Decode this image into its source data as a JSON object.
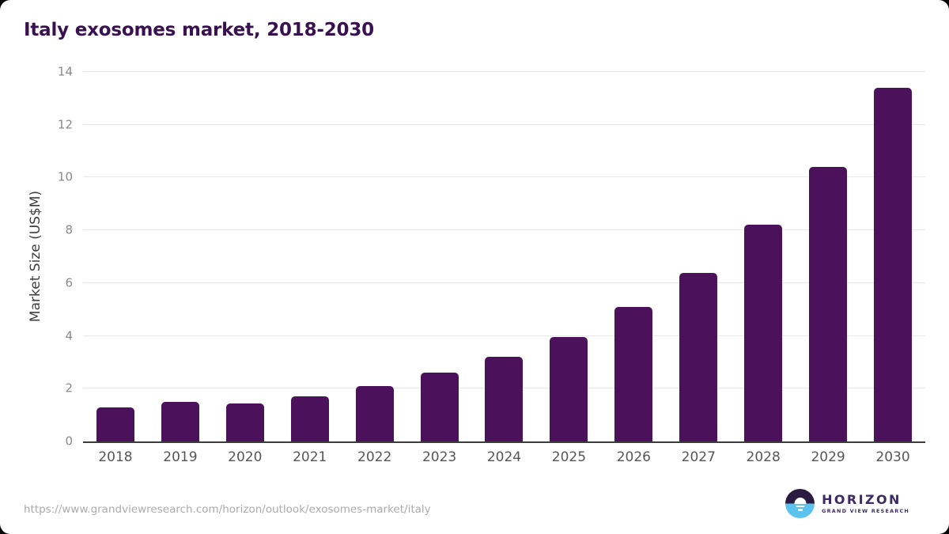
{
  "chart_data": {
    "type": "bar",
    "title": "Italy exosomes market, 2018-2030",
    "categories": [
      "2018",
      "2019",
      "2020",
      "2021",
      "2022",
      "2023",
      "2024",
      "2025",
      "2026",
      "2027",
      "2028",
      "2029",
      "2030"
    ],
    "values": [
      1.28,
      1.49,
      1.43,
      1.72,
      2.09,
      2.6,
      3.2,
      3.95,
      5.1,
      6.4,
      8.2,
      10.4,
      13.4
    ],
    "xlabel": "",
    "ylabel": "Market Size (US$M)",
    "ylim": [
      0,
      14
    ],
    "ytick_step": 2,
    "grid": true,
    "legend": false,
    "bar_color": "#4B115A"
  },
  "footer": {
    "source_url": "https://www.grandviewresearch.com/horizon/outlook/exosomes-market/italy",
    "logo": {
      "brand": "HORIZON",
      "sub_brand": "GRAND VIEW RESEARCH"
    }
  },
  "colors": {
    "bar": "#4B115A",
    "title": "#3A1150",
    "grid_line": "#E8E8E8",
    "axis_line": "#3B3B3B",
    "y_tick": "#8A8A8A",
    "x_tick": "#565656",
    "y_axis_title": "#3D3D3D",
    "url_text": "#ABABAB",
    "logo_dark": "#2B1B42",
    "logo_blue": "#5BC2EE",
    "logo_text": "#3B2A63"
  }
}
